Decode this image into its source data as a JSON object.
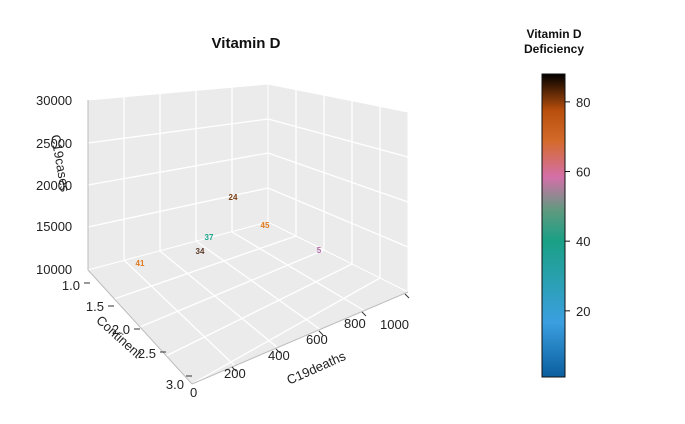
{
  "chart_data": {
    "type": "scatter",
    "title": "Vitamin D",
    "xlabel": "C19deaths",
    "ylabel": "Continent",
    "zlabel": "C19cases",
    "x_ticks": [
      "0",
      "200",
      "400",
      "600",
      "800",
      "1000"
    ],
    "y_ticks": [
      "1.0",
      "1.5",
      "2.0",
      "2.5",
      "3.0"
    ],
    "z_ticks": [
      "10000",
      "15000",
      "20000",
      "25000",
      "30000"
    ],
    "points": [
      {
        "label": "41",
        "color": "#e07a1f"
      },
      {
        "label": "34",
        "color": "#5b3a29"
      },
      {
        "label": "37",
        "color": "#1aa58a"
      },
      {
        "label": "24",
        "color": "#7a3e12"
      },
      {
        "label": "45",
        "color": "#e07a1f"
      },
      {
        "label": "5",
        "color": "#b06aa8"
      }
    ],
    "colorbar": {
      "title_line1": "Vitamin D",
      "title_line2": "Deficiency",
      "ticks": [
        "20",
        "40",
        "60",
        "80"
      ],
      "tick_values": [
        20,
        40,
        60,
        80
      ],
      "range": [
        1,
        88
      ],
      "gradient": [
        "#0a5e9e",
        "#3b9fe0",
        "#1a9e8a",
        "#0c8a5a",
        "#d46fa8",
        "#c96a3a",
        "#b84f0c",
        "#5a2a08",
        "#000000"
      ]
    }
  }
}
